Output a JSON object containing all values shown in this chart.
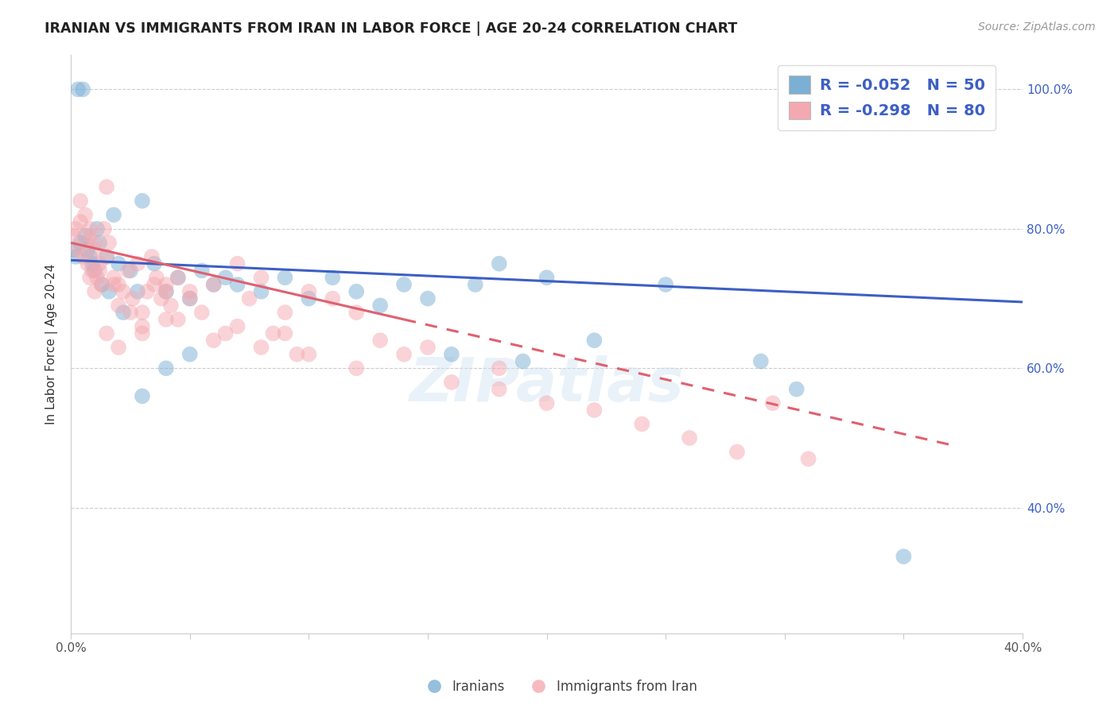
{
  "title": "IRANIAN VS IMMIGRANTS FROM IRAN IN LABOR FORCE | AGE 20-24 CORRELATION CHART",
  "source": "Source: ZipAtlas.com",
  "ylabel": "In Labor Force | Age 20-24",
  "xlim": [
    0.0,
    0.4
  ],
  "ylim": [
    0.22,
    1.05
  ],
  "ytick_positions": [
    0.4,
    0.6,
    0.8,
    1.0
  ],
  "ytick_labels": [
    "40.0%",
    "60.0%",
    "80.0%",
    "100.0%"
  ],
  "xtick_positions": [
    0.0,
    0.05,
    0.1,
    0.15,
    0.2,
    0.25,
    0.3,
    0.35,
    0.4
  ],
  "xtick_labels": [
    "0.0%",
    "",
    "",
    "",
    "",
    "",
    "",
    "",
    "40.0%"
  ],
  "grid_color": "#cccccc",
  "background_color": "#ffffff",
  "iranians_color": "#7bafd4",
  "immigrants_color": "#f4a9b0",
  "iranians_line_color": "#3d5fc4",
  "immigrants_line_color": "#e06070",
  "R_iranians": -0.052,
  "N_iranians": 50,
  "R_immigrants": -0.298,
  "N_immigrants": 80,
  "iranians_x": [
    0.001,
    0.002,
    0.003,
    0.004,
    0.005,
    0.006,
    0.007,
    0.008,
    0.009,
    0.01,
    0.011,
    0.012,
    0.013,
    0.015,
    0.016,
    0.018,
    0.02,
    0.022,
    0.025,
    0.028,
    0.03,
    0.035,
    0.04,
    0.045,
    0.05,
    0.055,
    0.06,
    0.065,
    0.07,
    0.08,
    0.09,
    0.1,
    0.11,
    0.12,
    0.13,
    0.14,
    0.15,
    0.16,
    0.17,
    0.18,
    0.19,
    0.2,
    0.22,
    0.25,
    0.03,
    0.04,
    0.05,
    0.29,
    0.305,
    0.35
  ],
  "iranians_y": [
    0.77,
    0.76,
    1.0,
    0.78,
    1.0,
    0.79,
    0.77,
    0.76,
    0.75,
    0.74,
    0.8,
    0.78,
    0.72,
    0.76,
    0.71,
    0.82,
    0.75,
    0.68,
    0.74,
    0.71,
    0.84,
    0.75,
    0.71,
    0.73,
    0.7,
    0.74,
    0.72,
    0.73,
    0.72,
    0.71,
    0.73,
    0.7,
    0.73,
    0.71,
    0.69,
    0.72,
    0.7,
    0.62,
    0.72,
    0.75,
    0.61,
    0.73,
    0.64,
    0.72,
    0.56,
    0.6,
    0.62,
    0.61,
    0.57,
    0.33
  ],
  "immigrants_x": [
    0.001,
    0.002,
    0.003,
    0.004,
    0.005,
    0.006,
    0.007,
    0.008,
    0.009,
    0.01,
    0.011,
    0.012,
    0.013,
    0.014,
    0.015,
    0.016,
    0.018,
    0.02,
    0.022,
    0.024,
    0.026,
    0.028,
    0.03,
    0.032,
    0.034,
    0.036,
    0.038,
    0.04,
    0.042,
    0.045,
    0.05,
    0.055,
    0.06,
    0.065,
    0.07,
    0.075,
    0.08,
    0.085,
    0.09,
    0.095,
    0.1,
    0.11,
    0.12,
    0.13,
    0.008,
    0.01,
    0.012,
    0.015,
    0.018,
    0.02,
    0.025,
    0.03,
    0.035,
    0.04,
    0.045,
    0.05,
    0.06,
    0.07,
    0.08,
    0.09,
    0.1,
    0.12,
    0.14,
    0.16,
    0.18,
    0.2,
    0.22,
    0.24,
    0.26,
    0.28,
    0.295,
    0.31,
    0.18,
    0.15,
    0.04,
    0.03,
    0.02,
    0.015,
    0.01,
    0.008,
    0.006,
    0.004
  ],
  "immigrants_y": [
    0.79,
    0.8,
    0.77,
    0.81,
    0.76,
    0.78,
    0.75,
    0.79,
    0.74,
    0.77,
    0.73,
    0.75,
    0.72,
    0.8,
    0.86,
    0.78,
    0.73,
    0.72,
    0.71,
    0.74,
    0.7,
    0.75,
    0.68,
    0.71,
    0.76,
    0.73,
    0.7,
    0.72,
    0.69,
    0.73,
    0.71,
    0.68,
    0.72,
    0.65,
    0.75,
    0.7,
    0.73,
    0.65,
    0.68,
    0.62,
    0.71,
    0.7,
    0.68,
    0.64,
    0.73,
    0.71,
    0.74,
    0.76,
    0.72,
    0.69,
    0.68,
    0.66,
    0.72,
    0.71,
    0.67,
    0.7,
    0.64,
    0.66,
    0.63,
    0.65,
    0.62,
    0.6,
    0.62,
    0.58,
    0.57,
    0.55,
    0.54,
    0.52,
    0.5,
    0.48,
    0.55,
    0.47,
    0.6,
    0.63,
    0.67,
    0.65,
    0.63,
    0.65,
    0.78,
    0.8,
    0.82,
    0.84
  ]
}
